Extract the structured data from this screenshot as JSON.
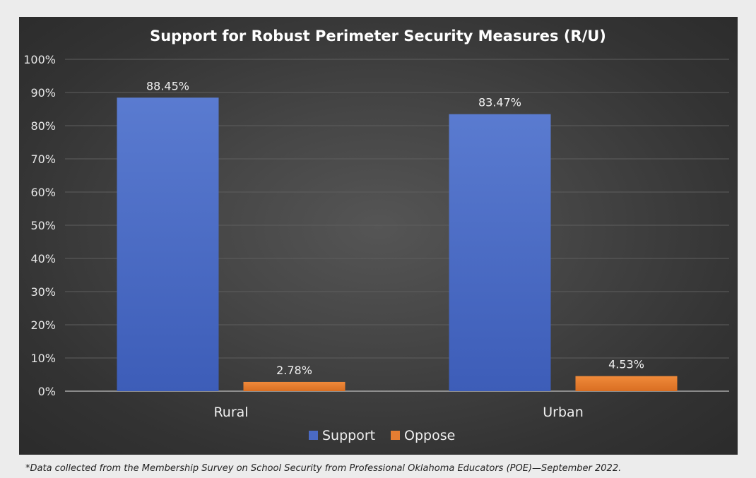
{
  "chart_data": {
    "type": "bar",
    "title": "Support for Robust Perimeter Security Measures (R/U)",
    "categories": [
      "Rural",
      "Urban"
    ],
    "series": [
      {
        "name": "Support",
        "values": [
          88.45,
          83.47
        ],
        "labels": [
          "88.45%",
          "83.47%"
        ],
        "color": "#4a6ac4"
      },
      {
        "name": "Oppose",
        "values": [
          2.78,
          4.53
        ],
        "labels": [
          "2.78%",
          "4.53%"
        ],
        "color": "#e67d32"
      }
    ],
    "ylim": [
      0,
      100
    ],
    "yticks": [
      "0%",
      "10%",
      "20%",
      "30%",
      "40%",
      "50%",
      "60%",
      "70%",
      "80%",
      "90%",
      "100%"
    ],
    "grid": true,
    "legend_position": "bottom"
  },
  "footnote": "*Data collected from the Membership Survey on School Security from Professional Oklahoma Educators (POE)—September 2022."
}
